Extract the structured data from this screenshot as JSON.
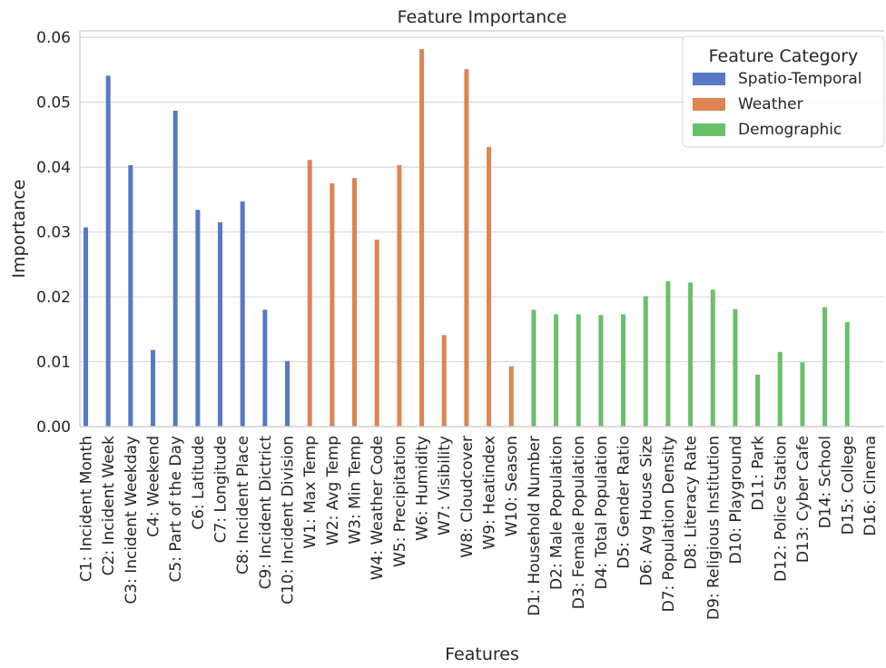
{
  "chart_data": {
    "type": "bar",
    "title": "Feature Importance",
    "xlabel": "Features",
    "ylabel": "Importance",
    "ylim": [
      0,
      0.061
    ],
    "yticks": [
      "0.00",
      "0.01",
      "0.02",
      "0.03",
      "0.04",
      "0.05",
      "0.06"
    ],
    "grid": "horizontal",
    "legend": {
      "title": "Feature Category",
      "placement": "top-right",
      "entries": [
        "Spatio-Temporal",
        "Weather",
        "Demographic"
      ]
    },
    "series": [
      {
        "name": "Spatio-Temporal",
        "color": "#5778c5"
      },
      {
        "name": "Weather",
        "color": "#dd8452"
      },
      {
        "name": "Demographic",
        "color": "#6abf69"
      }
    ],
    "categories": [
      "C1: Incident Month",
      "C2: Incident Week",
      "C3: Incident Weekday",
      "C4: Weekend",
      "C5: Part of the Day",
      "C6: Latitude",
      "C7: Longitude",
      "C8: Incident Place",
      "C9: Incident Dictrict",
      "C10: Incident Division",
      "W1: Max Temp",
      "W2: Avg Temp",
      "W3: Min Temp",
      "W4: Weather Code",
      "W5: Precipitation",
      "W6: Humidity",
      "W7: Visibility",
      "W8: Cloudcover",
      "W9: Heatindex",
      "W10: Season",
      "D1: Household Number",
      "D2: Male Population",
      "D3: Female Population",
      "D4: Total Population",
      "D5: Gender Ratio",
      "D6: Avg House Size",
      "D7: Population Density",
      "D8: Literacy Rate",
      "D9: Religious Institution",
      "D10: Playground",
      "D11: Park",
      "D12: Police Station",
      "D13: Cyber Cafe",
      "D14: School",
      "D15: College",
      "D16: Cinema"
    ],
    "category_series": [
      0,
      0,
      0,
      0,
      0,
      0,
      0,
      0,
      0,
      0,
      1,
      1,
      1,
      1,
      1,
      1,
      1,
      1,
      1,
      1,
      2,
      2,
      2,
      2,
      2,
      2,
      2,
      2,
      2,
      2,
      2,
      2,
      2,
      2,
      2,
      2
    ],
    "values": [
      0.0307,
      0.0541,
      0.0403,
      0.0118,
      0.0487,
      0.0334,
      0.0315,
      0.0347,
      0.018,
      0.0101,
      0.0411,
      0.0375,
      0.0383,
      0.0288,
      0.0403,
      0.0582,
      0.0141,
      0.0551,
      0.0431,
      0.0093,
      0.018,
      0.0173,
      0.0173,
      0.0172,
      0.0173,
      0.0201,
      0.0224,
      0.0222,
      0.0211,
      0.0181,
      0.008,
      0.0115,
      0.0099,
      0.0184,
      0.0161,
      0.0
    ]
  }
}
